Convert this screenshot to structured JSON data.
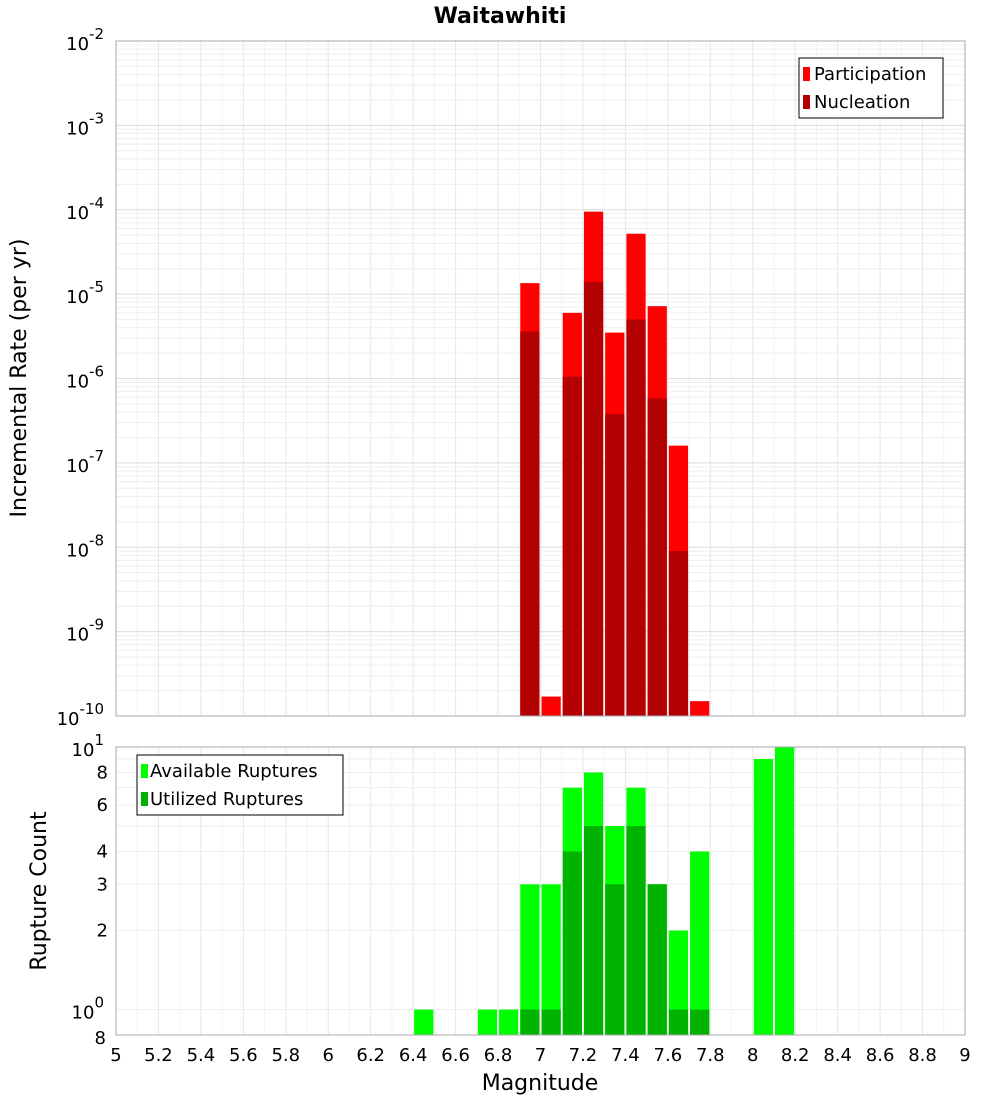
{
  "chart_data": [
    {
      "type": "bar",
      "panel": "top",
      "title": "Waitawhiti",
      "xlabel": "",
      "ylabel": "Incremental Rate (per yr)",
      "yscale": "log",
      "ylim": [
        1e-10,
        0.01
      ],
      "xlim": [
        5,
        9
      ],
      "bin_width": 0.1,
      "y_tick_labels": [
        {
          "exp": -10,
          "base": "10",
          "power": "-10"
        },
        {
          "exp": -9,
          "base": "10",
          "power": "-9"
        },
        {
          "exp": -8,
          "base": "10",
          "power": "-8"
        },
        {
          "exp": -7,
          "base": "10",
          "power": "-7"
        },
        {
          "exp": -6,
          "base": "10",
          "power": "-6"
        },
        {
          "exp": -5,
          "base": "10",
          "power": "-5"
        },
        {
          "exp": -4,
          "base": "10",
          "power": "-4"
        },
        {
          "exp": -3,
          "base": "10",
          "power": "-3"
        },
        {
          "exp": -2,
          "base": "10",
          "power": "-2"
        }
      ],
      "legend": {
        "location": "top-right",
        "entries": [
          "Participation",
          "Nucleation"
        ]
      },
      "series": [
        {
          "name": "Participation",
          "color": "#ff0000",
          "x": [
            6.95,
            7.05,
            7.15,
            7.25,
            7.35,
            7.45,
            7.55,
            7.65,
            7.75
          ],
          "values": [
            1.35e-05,
            1.7e-10,
            6e-06,
            9.5e-05,
            3.5e-06,
            5.2e-05,
            7.2e-06,
            1.6e-07,
            1.5e-10
          ]
        },
        {
          "name": "Nucleation",
          "color": "#b30000",
          "x": [
            6.95,
            7.15,
            7.25,
            7.35,
            7.45,
            7.55,
            7.65
          ],
          "values": [
            3.6e-06,
            1.05e-06,
            1.4e-05,
            3.8e-07,
            5e-06,
            5.8e-07,
            9e-09
          ]
        }
      ]
    },
    {
      "type": "bar",
      "panel": "bottom",
      "title": "",
      "xlabel": "Magnitude",
      "ylabel": "Rupture Count",
      "yscale": "log",
      "ylim": [
        0.8,
        10
      ],
      "xlim": [
        5,
        9
      ],
      "bin_width": 0.1,
      "x_tick_labels": [
        "5",
        "5.2",
        "5.4",
        "5.6",
        "5.8",
        "6",
        "6.2",
        "6.4",
        "6.6",
        "6.8",
        "7",
        "7.2",
        "7.4",
        "7.6",
        "7.8",
        "8",
        "8.2",
        "8.4",
        "8.6",
        "8.8",
        "9"
      ],
      "y_minor_tick_labels": [
        "2",
        "3",
        "4",
        "6",
        "8"
      ],
      "y_major_tick_labels": [
        {
          "value": 1,
          "base": "10",
          "power": "0"
        },
        {
          "value": 10,
          "base": "10",
          "power": "1"
        }
      ],
      "y_min_label": "8",
      "legend": {
        "location": "top-left",
        "entries": [
          "Available Ruptures",
          "Utilized Ruptures"
        ]
      },
      "series": [
        {
          "name": "Available Ruptures",
          "color": "#00ff00",
          "x": [
            6.45,
            6.75,
            6.85,
            6.95,
            7.05,
            7.15,
            7.25,
            7.35,
            7.45,
            7.55,
            7.65,
            7.75,
            8.05,
            8.15
          ],
          "values": [
            1,
            1,
            1,
            3,
            3,
            7,
            8,
            5,
            7,
            3,
            2,
            4,
            9,
            10
          ]
        },
        {
          "name": "Utilized Ruptures",
          "color": "#00b300",
          "x": [
            6.95,
            7.05,
            7.15,
            7.25,
            7.35,
            7.45,
            7.55,
            7.65,
            7.75
          ],
          "values": [
            1,
            1,
            4,
            5,
            3,
            5,
            3,
            1,
            1
          ]
        }
      ]
    }
  ]
}
